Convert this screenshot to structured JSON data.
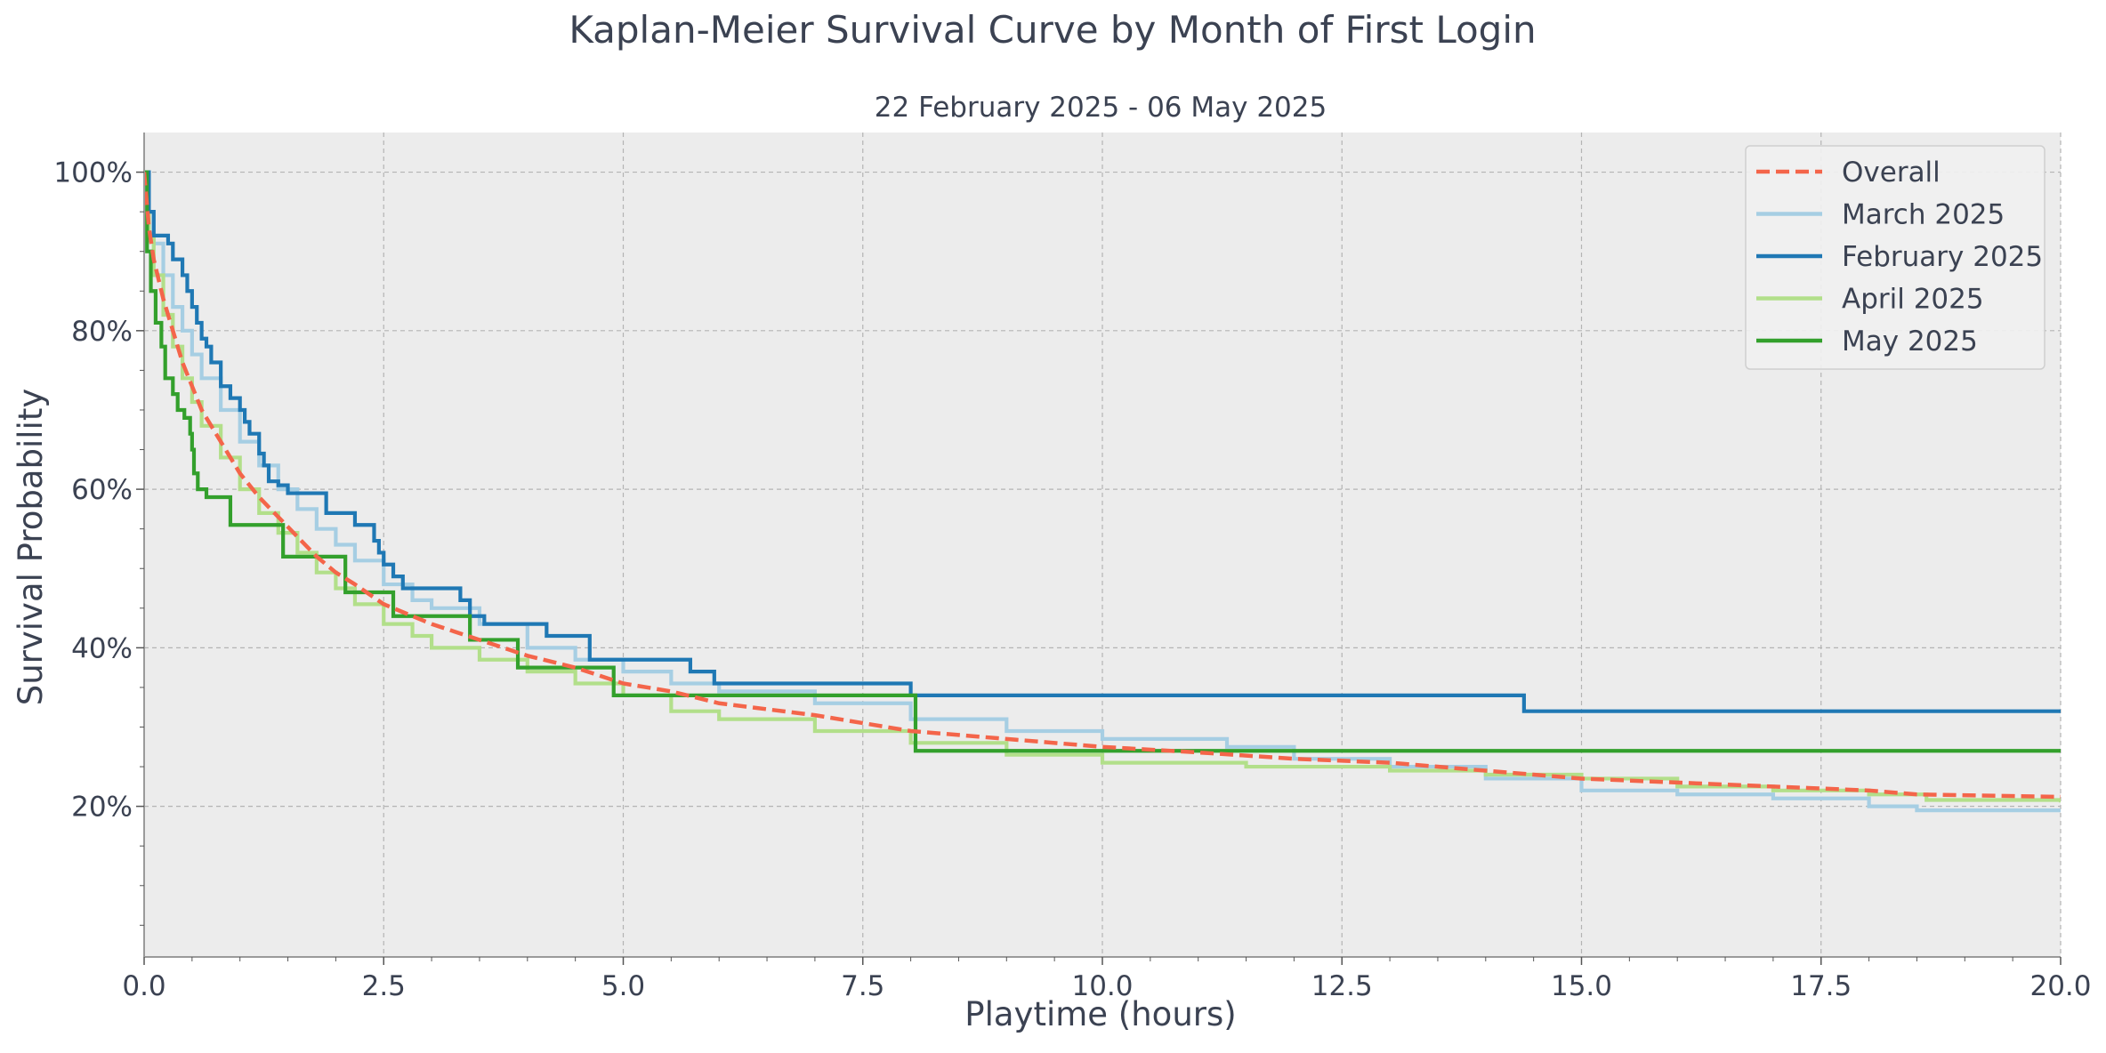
{
  "chart_data": {
    "type": "line",
    "title": "Kaplan-Meier Survival Curve by Month of First Login",
    "subtitle": "22 February 2025 - 06 May 2025",
    "xlabel": "Playtime (hours)",
    "ylabel": "Survival Probability",
    "xlim": [
      0,
      20
    ],
    "ylim": [
      0.01,
      1.05
    ],
    "xticks": [
      "0.0",
      "2.5",
      "5.0",
      "7.5",
      "10.0",
      "12.5",
      "15.0",
      "17.5",
      "20.0"
    ],
    "yticks": [
      "20%",
      "40%",
      "60%",
      "80%",
      "100%"
    ],
    "grid": true,
    "legend_position": "top-right",
    "series": [
      {
        "name": "Overall",
        "color": "#f4654a",
        "style": "dashed",
        "step": false,
        "points": [
          [
            0,
            1.0
          ],
          [
            0.05,
            0.93
          ],
          [
            0.1,
            0.89
          ],
          [
            0.2,
            0.84
          ],
          [
            0.3,
            0.8
          ],
          [
            0.4,
            0.76
          ],
          [
            0.5,
            0.73
          ],
          [
            0.6,
            0.7
          ],
          [
            0.8,
            0.66
          ],
          [
            1.0,
            0.62
          ],
          [
            1.2,
            0.59
          ],
          [
            1.4,
            0.565
          ],
          [
            1.6,
            0.54
          ],
          [
            1.8,
            0.515
          ],
          [
            2.0,
            0.495
          ],
          [
            2.2,
            0.48
          ],
          [
            2.5,
            0.455
          ],
          [
            2.8,
            0.44
          ],
          [
            3.0,
            0.43
          ],
          [
            3.5,
            0.41
          ],
          [
            4.0,
            0.39
          ],
          [
            4.5,
            0.375
          ],
          [
            5.0,
            0.355
          ],
          [
            5.5,
            0.345
          ],
          [
            6.0,
            0.33
          ],
          [
            7.0,
            0.315
          ],
          [
            8.0,
            0.295
          ],
          [
            9.0,
            0.285
          ],
          [
            10.0,
            0.275
          ],
          [
            11.0,
            0.268
          ],
          [
            12.0,
            0.26
          ],
          [
            13.0,
            0.255
          ],
          [
            14.0,
            0.245
          ],
          [
            15.0,
            0.235
          ],
          [
            16.0,
            0.23
          ],
          [
            17.0,
            0.225
          ],
          [
            18.0,
            0.22
          ],
          [
            18.5,
            0.215
          ],
          [
            20.0,
            0.212
          ]
        ]
      },
      {
        "name": "March 2025",
        "color": "#a6cee3",
        "style": "solid",
        "step": true,
        "points": [
          [
            0,
            1.0
          ],
          [
            0.05,
            0.95
          ],
          [
            0.1,
            0.91
          ],
          [
            0.2,
            0.87
          ],
          [
            0.3,
            0.83
          ],
          [
            0.4,
            0.8
          ],
          [
            0.5,
            0.77
          ],
          [
            0.6,
            0.74
          ],
          [
            0.8,
            0.7
          ],
          [
            1.0,
            0.66
          ],
          [
            1.2,
            0.63
          ],
          [
            1.4,
            0.6
          ],
          [
            1.6,
            0.575
          ],
          [
            1.8,
            0.55
          ],
          [
            2.0,
            0.53
          ],
          [
            2.2,
            0.51
          ],
          [
            2.5,
            0.48
          ],
          [
            2.8,
            0.46
          ],
          [
            3.0,
            0.45
          ],
          [
            3.5,
            0.43
          ],
          [
            4.0,
            0.4
          ],
          [
            4.5,
            0.385
          ],
          [
            5.0,
            0.37
          ],
          [
            5.5,
            0.355
          ],
          [
            6.0,
            0.345
          ],
          [
            7.0,
            0.33
          ],
          [
            8.0,
            0.31
          ],
          [
            9.0,
            0.295
          ],
          [
            10.0,
            0.285
          ],
          [
            11.3,
            0.275
          ],
          [
            12.0,
            0.26
          ],
          [
            13.0,
            0.25
          ],
          [
            14.0,
            0.235
          ],
          [
            15.0,
            0.22
          ],
          [
            16.0,
            0.215
          ],
          [
            17.0,
            0.21
          ],
          [
            18.0,
            0.2
          ],
          [
            18.5,
            0.195
          ],
          [
            20.0,
            0.195
          ]
        ]
      },
      {
        "name": "February 2025",
        "color": "#1f78b4",
        "style": "solid",
        "step": true,
        "points": [
          [
            0,
            1.0
          ],
          [
            0.05,
            0.95
          ],
          [
            0.1,
            0.92
          ],
          [
            0.25,
            0.91
          ],
          [
            0.3,
            0.89
          ],
          [
            0.35,
            0.89
          ],
          [
            0.4,
            0.87
          ],
          [
            0.45,
            0.85
          ],
          [
            0.5,
            0.83
          ],
          [
            0.55,
            0.81
          ],
          [
            0.6,
            0.79
          ],
          [
            0.65,
            0.78
          ],
          [
            0.7,
            0.76
          ],
          [
            0.8,
            0.73
          ],
          [
            0.9,
            0.715
          ],
          [
            1.0,
            0.7
          ],
          [
            1.05,
            0.685
          ],
          [
            1.1,
            0.67
          ],
          [
            1.2,
            0.645
          ],
          [
            1.25,
            0.63
          ],
          [
            1.3,
            0.61
          ],
          [
            1.4,
            0.605
          ],
          [
            1.5,
            0.595
          ],
          [
            1.9,
            0.57
          ],
          [
            2.2,
            0.555
          ],
          [
            2.4,
            0.535
          ],
          [
            2.45,
            0.52
          ],
          [
            2.5,
            0.505
          ],
          [
            2.6,
            0.49
          ],
          [
            2.7,
            0.475
          ],
          [
            2.85,
            0.475
          ],
          [
            3.3,
            0.46
          ],
          [
            3.4,
            0.44
          ],
          [
            3.55,
            0.43
          ],
          [
            4.2,
            0.415
          ],
          [
            4.65,
            0.385
          ],
          [
            5.7,
            0.37
          ],
          [
            5.95,
            0.355
          ],
          [
            8.0,
            0.34
          ],
          [
            14.4,
            0.32
          ],
          [
            20.0,
            0.32
          ]
        ]
      },
      {
        "name": "April 2025",
        "color": "#b2df8a",
        "style": "solid",
        "step": true,
        "points": [
          [
            0,
            1.0
          ],
          [
            0.05,
            0.92
          ],
          [
            0.1,
            0.87
          ],
          [
            0.2,
            0.82
          ],
          [
            0.3,
            0.78
          ],
          [
            0.4,
            0.74
          ],
          [
            0.5,
            0.71
          ],
          [
            0.6,
            0.68
          ],
          [
            0.8,
            0.64
          ],
          [
            1.0,
            0.6
          ],
          [
            1.2,
            0.57
          ],
          [
            1.4,
            0.545
          ],
          [
            1.6,
            0.52
          ],
          [
            1.8,
            0.495
          ],
          [
            2.0,
            0.475
          ],
          [
            2.2,
            0.455
          ],
          [
            2.5,
            0.43
          ],
          [
            2.8,
            0.415
          ],
          [
            3.0,
            0.4
          ],
          [
            3.5,
            0.385
          ],
          [
            4.0,
            0.37
          ],
          [
            4.5,
            0.355
          ],
          [
            5.0,
            0.34
          ],
          [
            5.5,
            0.32
          ],
          [
            6.0,
            0.31
          ],
          [
            7.0,
            0.295
          ],
          [
            8.0,
            0.28
          ],
          [
            9.0,
            0.265
          ],
          [
            10.0,
            0.255
          ],
          [
            11.5,
            0.25
          ],
          [
            13.0,
            0.245
          ],
          [
            14.0,
            0.24
          ],
          [
            15.0,
            0.235
          ],
          [
            16.0,
            0.225
          ],
          [
            17.0,
            0.22
          ],
          [
            18.0,
            0.215
          ],
          [
            18.6,
            0.208
          ],
          [
            20.0,
            0.205
          ]
        ]
      },
      {
        "name": "May 2025",
        "color": "#33a02c",
        "style": "solid",
        "step": true,
        "points": [
          [
            0,
            1.0
          ],
          [
            0.03,
            0.9
          ],
          [
            0.07,
            0.85
          ],
          [
            0.12,
            0.81
          ],
          [
            0.18,
            0.78
          ],
          [
            0.22,
            0.74
          ],
          [
            0.3,
            0.72
          ],
          [
            0.35,
            0.7
          ],
          [
            0.42,
            0.69
          ],
          [
            0.48,
            0.67
          ],
          [
            0.5,
            0.65
          ],
          [
            0.52,
            0.62
          ],
          [
            0.56,
            0.6
          ],
          [
            0.65,
            0.59
          ],
          [
            0.9,
            0.555
          ],
          [
            1.45,
            0.515
          ],
          [
            2.1,
            0.47
          ],
          [
            2.6,
            0.44
          ],
          [
            3.4,
            0.41
          ],
          [
            3.9,
            0.375
          ],
          [
            4.9,
            0.34
          ],
          [
            8.05,
            0.27
          ],
          [
            20.0,
            0.27
          ]
        ]
      }
    ]
  }
}
